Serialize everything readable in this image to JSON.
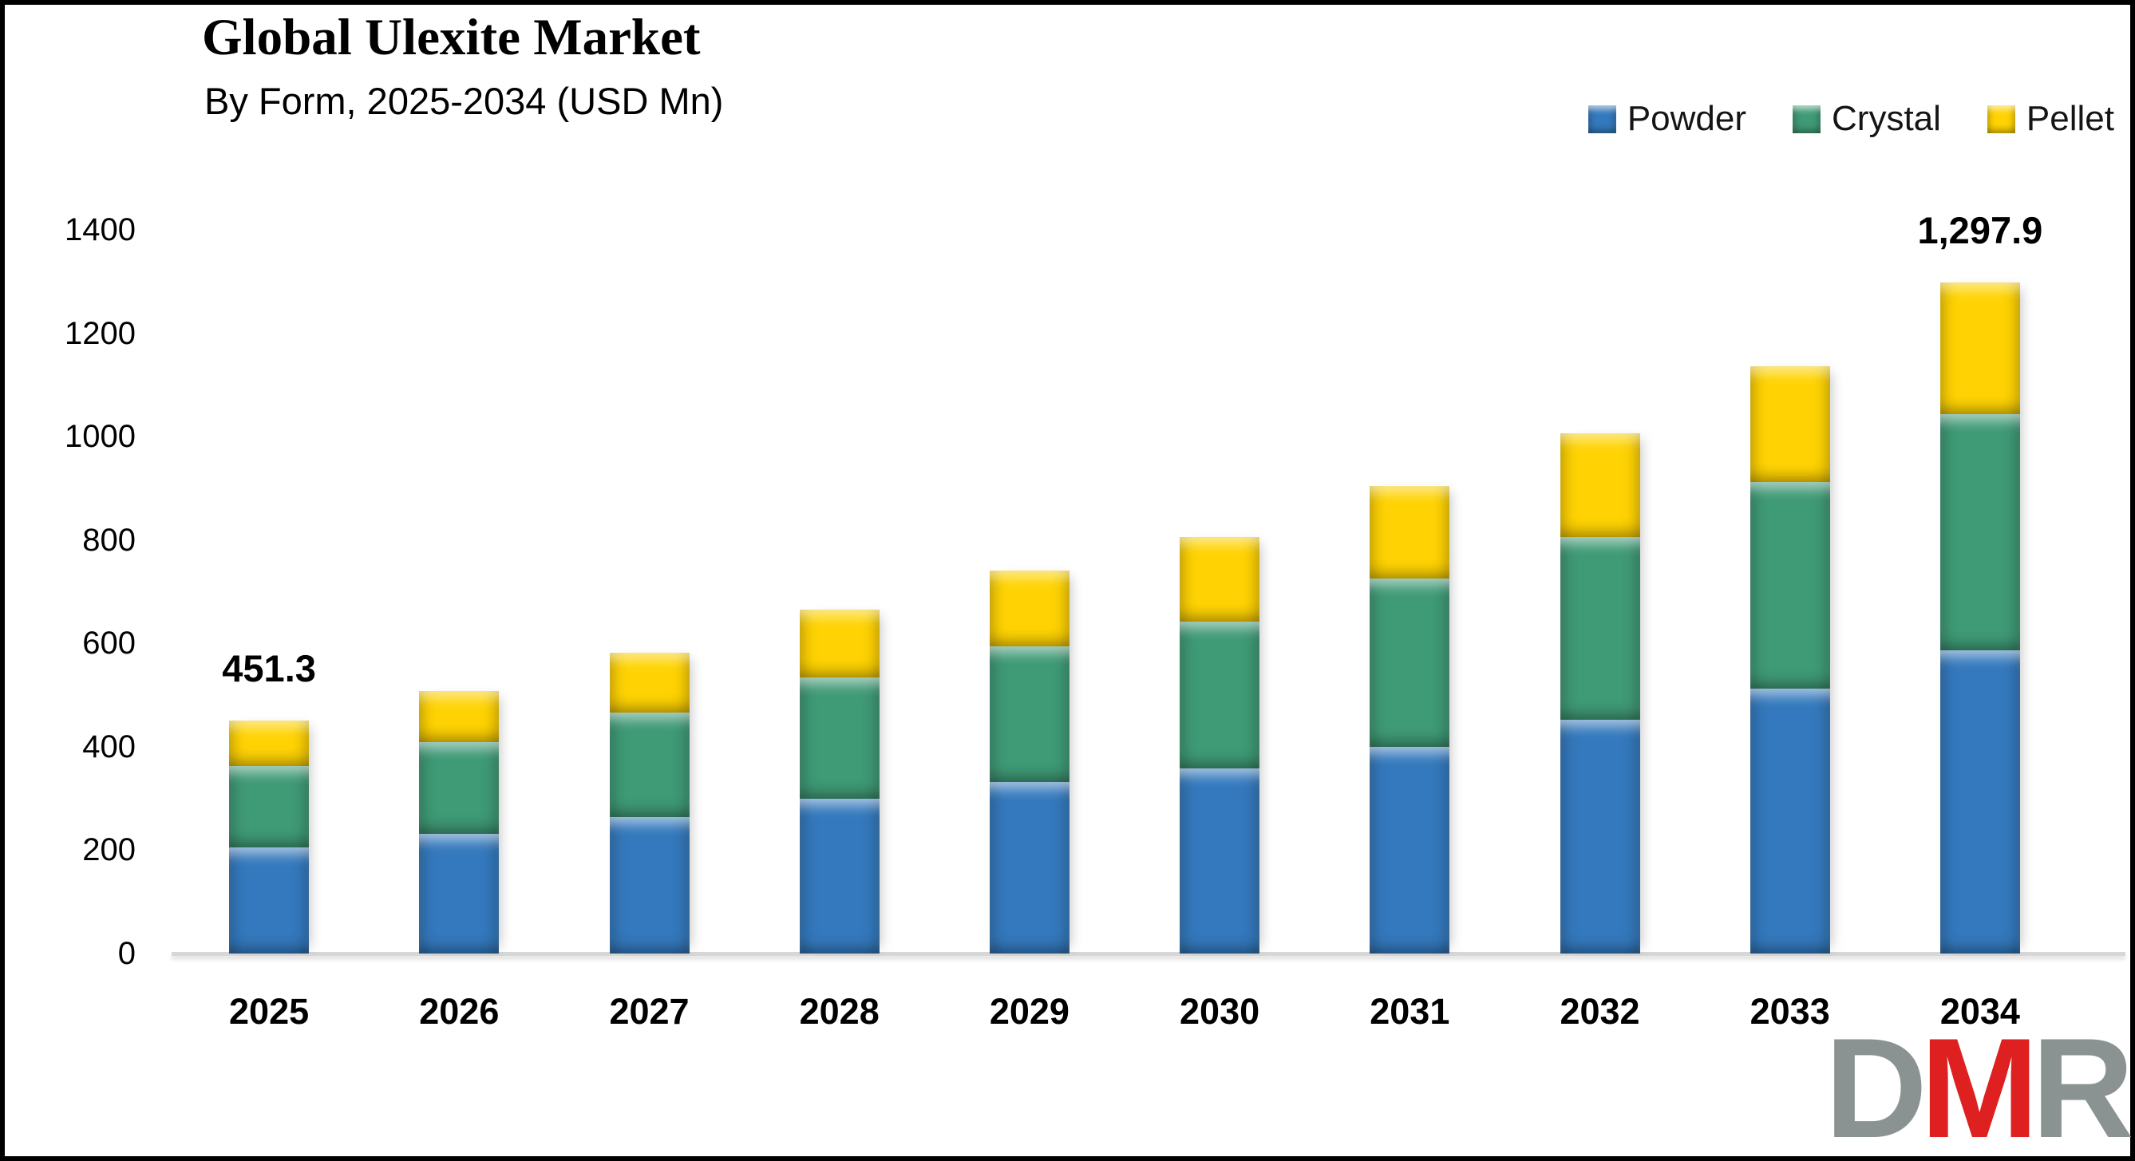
{
  "header": {
    "title": "Global Ulexite Market",
    "subtitle": "By Form, 2025-2034 (USD Mn)"
  },
  "chart_data": {
    "type": "bar",
    "stacked": true,
    "title": "Global Ulexite Market",
    "subtitle": "By Form, 2025-2034 (USD Mn)",
    "unit": "USD Mn",
    "categories": [
      "2025",
      "2026",
      "2027",
      "2028",
      "2029",
      "2030",
      "2031",
      "2032",
      "2033",
      "2034"
    ],
    "series": [
      {
        "name": "Powder",
        "color": "#3479BD",
        "values": [
          205.6,
          231.0,
          264.5,
          299.0,
          331.5,
          358.0,
          400.0,
          453.0,
          512.0,
          586.7
        ]
      },
      {
        "name": "Crystal",
        "color": "#3F9A76",
        "values": [
          157.6,
          177.5,
          201.5,
          235.0,
          262.5,
          284.0,
          325.0,
          353.5,
          400.0,
          456.9
        ]
      },
      {
        "name": "Pellet",
        "color": "#FFD303",
        "values": [
          88.1,
          99.1,
          115.5,
          131.0,
          146.2,
          163.1,
          180.3,
          200.4,
          223.4,
          254.3
        ]
      }
    ],
    "totals": [
      451.3,
      507.6,
      581.5,
      665.0,
      740.2,
      805.1,
      905.3,
      1006.9,
      1135.4,
      1297.9
    ],
    "bar_labels": [
      {
        "index": 0,
        "text": "451.3"
      },
      {
        "index": 9,
        "text": "1,297.9"
      }
    ],
    "ylim": [
      0,
      1400
    ],
    "yticks": [
      0,
      200,
      400,
      600,
      800,
      1000,
      1200,
      1400
    ],
    "grid": false,
    "legend_position": "top-right",
    "axis_line_color": "#D7D7D7"
  },
  "logo": {
    "letters": [
      {
        "char": "D",
        "color": "#8B9292"
      },
      {
        "char": "M",
        "color": "#DE2020"
      },
      {
        "char": "R",
        "color": "#8B9292"
      }
    ]
  }
}
